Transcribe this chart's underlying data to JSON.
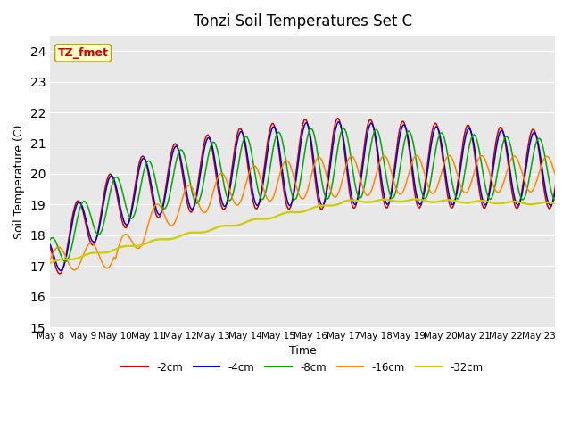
{
  "title": "Tonzi Soil Temperatures Set C",
  "xlabel": "Time",
  "ylabel": "Soil Temperature (C)",
  "ylim": [
    15.0,
    24.5
  ],
  "yticks": [
    15.0,
    16.0,
    17.0,
    18.0,
    19.0,
    20.0,
    21.0,
    22.0,
    23.0,
    24.0
  ],
  "x_tick_labels": [
    "May 8",
    "May 9",
    "May 10",
    "May 11",
    "May 12",
    "May 13",
    "May 14",
    "May 15",
    "May 16",
    "May 17",
    "May 18",
    "May 19",
    "May 20",
    "May 21",
    "May 22",
    "May 23"
  ],
  "line_colors": {
    "-2cm": "#cc0000",
    "-4cm": "#0000cc",
    "-8cm": "#00aa00",
    "-16cm": "#ff8800",
    "-32cm": "#cccc00"
  },
  "legend_labels": [
    "-2cm",
    "-4cm",
    "-8cm",
    "-16cm",
    "-32cm"
  ],
  "annotation_text": "TZ_fmet",
  "annotation_bg": "#ffffcc",
  "annotation_border": "#aaaa00",
  "plot_bg": "#e8e8e8"
}
